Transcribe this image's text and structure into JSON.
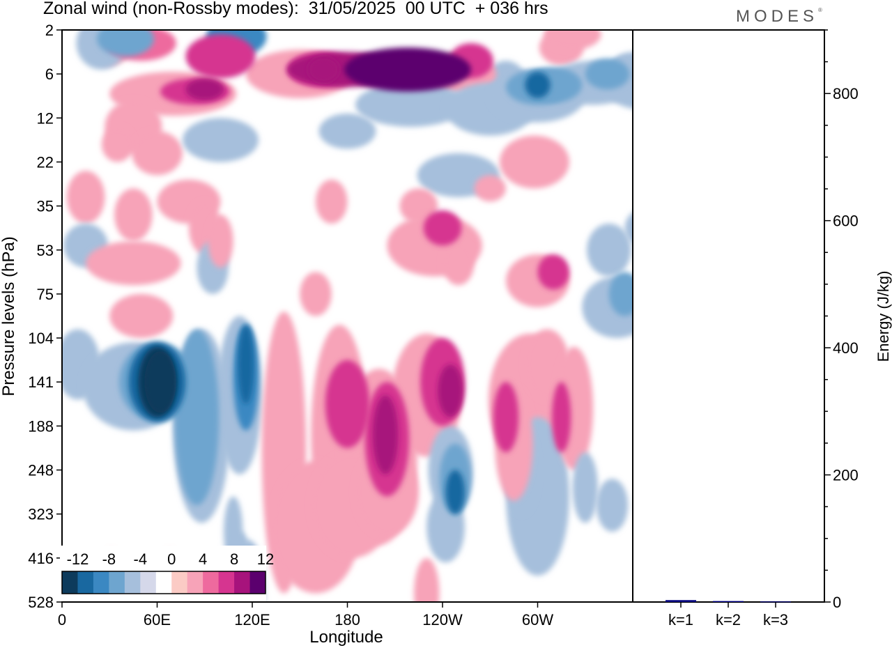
{
  "title": "Zonal wind (non-Rossby modes):  31/05/2025  00 UTC  + 036 hrs",
  "brand": "MODES",
  "chart_data": [
    {
      "type": "heatmap",
      "title": "Zonal wind (non-Rossby modes):  31/05/2025  00 UTC  + 036 hrs",
      "xlabel": "Longitude",
      "ylabel": "Pressure levels (hPa)",
      "x_ticks": [
        "0",
        "60E",
        "120E",
        "180",
        "120W",
        "60W"
      ],
      "x_tick_degrees": [
        0,
        60,
        120,
        180,
        240,
        300
      ],
      "xlim": [
        0,
        360
      ],
      "y_ticks": [
        "2",
        "6",
        "12",
        "22",
        "35",
        "53",
        "75",
        "104",
        "141",
        "188",
        "248",
        "323",
        "416",
        "528"
      ],
      "colorbar": {
        "labels": [
          "-12",
          "-8",
          "-4",
          "0",
          "4",
          "8",
          "12"
        ],
        "colors": [
          "#0d3b5c",
          "#1968a0",
          "#3b88c2",
          "#6ea5cf",
          "#a6bfdc",
          "#d5d8ea",
          "#ffffff",
          "#fbcbc5",
          "#f7a3b8",
          "#ee6a9e",
          "#d63590",
          "#a7137c",
          "#5b006e"
        ]
      },
      "features": [
        {
          "name": "negative core",
          "value": -14,
          "lon": 57,
          "level": "141"
        },
        {
          "name": "positive core",
          "value": 10,
          "lon": 202,
          "level": "141"
        }
      ]
    },
    {
      "type": "bar",
      "categories": [
        "k=1",
        "k=2",
        "k=3"
      ],
      "values": [
        3,
        1.5,
        0.8
      ],
      "ylabel": "Energy (J/kg)",
      "ylim": [
        0,
        900
      ],
      "y_ticks": [
        "0",
        "200",
        "400",
        "600",
        "800"
      ],
      "colors": [
        "#000080",
        "#000080",
        "#000080"
      ]
    }
  ]
}
